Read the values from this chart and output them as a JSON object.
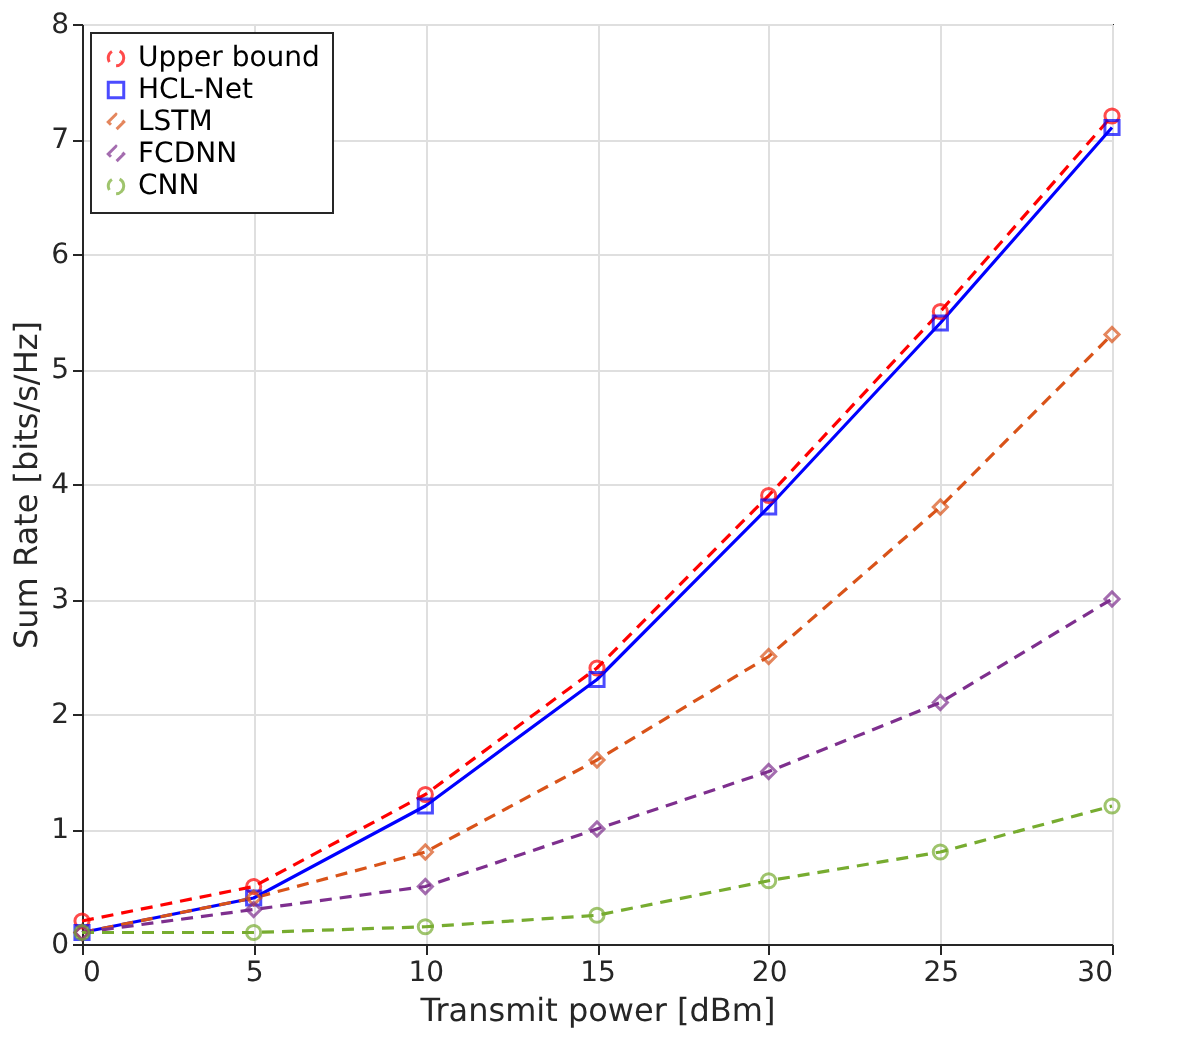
{
  "chart_data": {
    "type": "line",
    "xlabel": "Transmit power [dBm]",
    "ylabel": "Sum Rate [bits/s/Hz]",
    "x": [
      0,
      5,
      10,
      15,
      20,
      25,
      30
    ],
    "series": [
      {
        "name": "Upper bound",
        "color": "#ff0000",
        "marker": "circle",
        "line_style": "dashed",
        "values": [
          0.2,
          0.5,
          1.3,
          2.4,
          3.9,
          5.5,
          7.2
        ]
      },
      {
        "name": "HCL-Net",
        "color": "#0000ff",
        "marker": "square",
        "line_style": "solid",
        "values": [
          0.1,
          0.4,
          1.2,
          2.3,
          3.8,
          5.4,
          7.1
        ]
      },
      {
        "name": "LSTM",
        "color": "#d95319",
        "marker": "diamond",
        "line_style": "dashed",
        "values": [
          0.1,
          0.4,
          0.8,
          1.6,
          2.5,
          3.8,
          5.3
        ]
      },
      {
        "name": "FCDNN",
        "color": "#7e2f8e",
        "marker": "diamond",
        "line_style": "dashed",
        "values": [
          0.1,
          0.3,
          0.5,
          1.0,
          1.5,
          2.1,
          3.0
        ]
      },
      {
        "name": "CNN",
        "color": "#77ac30",
        "marker": "circle",
        "line_style": "dashed",
        "values": [
          0.1,
          0.1,
          0.15,
          0.25,
          0.55,
          0.8,
          1.2
        ]
      }
    ],
    "xlim": [
      0,
      30
    ],
    "xticks": [
      0,
      5,
      10,
      15,
      20,
      25,
      30
    ],
    "ylim": [
      0,
      8
    ],
    "yticks": [
      0,
      1,
      2,
      3,
      4,
      5,
      6,
      7,
      8
    ],
    "grid": true,
    "legend": "top left"
  }
}
